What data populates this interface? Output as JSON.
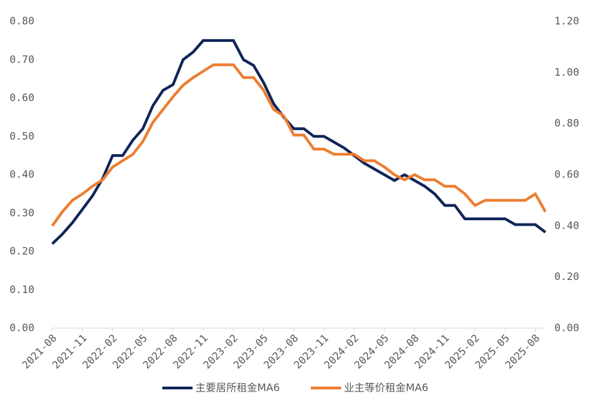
{
  "chart_data": {
    "type": "line",
    "categories": [
      "2021-08",
      null,
      null,
      "2021-11",
      null,
      null,
      "2022-02",
      null,
      null,
      "2022-05",
      null,
      null,
      "2022-08",
      null,
      null,
      "2022-11",
      null,
      null,
      "2023-02",
      null,
      null,
      "2023-05",
      null,
      null,
      "2023-08",
      null,
      null,
      "2023-11",
      null,
      null,
      "2024-02",
      null,
      null,
      "2024-05",
      null,
      null,
      "2024-08",
      null,
      null,
      "2024-11",
      null,
      null,
      "2025-02",
      null,
      null,
      "2025-05",
      null,
      null,
      "2025-08",
      null
    ],
    "series": [
      {
        "name": "主要居所租金MA6",
        "color": "#0f2557",
        "axis": "y",
        "values": [
          0.22,
          0.245,
          0.275,
          0.31,
          0.345,
          0.39,
          0.45,
          0.45,
          0.49,
          0.52,
          0.58,
          0.62,
          0.635,
          0.7,
          0.72,
          0.75,
          0.75,
          0.75,
          0.75,
          0.7,
          0.685,
          0.64,
          0.585,
          0.55,
          0.52,
          0.52,
          0.5,
          0.5,
          0.485,
          0.47,
          0.45,
          0.43,
          0.415,
          0.4,
          0.385,
          0.4,
          0.385,
          0.37,
          0.35,
          0.32,
          0.32,
          0.285,
          0.285,
          0.285,
          0.285,
          0.285,
          0.27,
          0.27,
          0.27,
          0.25
        ]
      },
      {
        "name": "业主等价租金MA6",
        "color": "#ed7d31",
        "axis": "y2",
        "values": [
          0.4,
          0.455,
          0.5,
          0.525,
          0.555,
          0.58,
          0.63,
          0.655,
          0.68,
          0.73,
          0.805,
          0.855,
          0.905,
          0.95,
          0.98,
          1.005,
          1.03,
          1.03,
          1.03,
          0.98,
          0.98,
          0.93,
          0.855,
          0.83,
          0.755,
          0.755,
          0.7,
          0.7,
          0.68,
          0.68,
          0.68,
          0.655,
          0.655,
          0.63,
          0.6,
          0.58,
          0.6,
          0.58,
          0.58,
          0.555,
          0.555,
          0.525,
          0.48,
          0.5,
          0.5,
          0.5,
          0.5,
          0.5,
          0.525,
          0.455
        ]
      }
    ],
    "ylim": [
      0,
      0.8
    ],
    "yticks": [
      {
        "value": 0,
        "label": "0.00"
      },
      {
        "value": 0.1,
        "label": "0.10"
      },
      {
        "value": 0.2,
        "label": "0.20"
      },
      {
        "value": 0.3,
        "label": "0.30"
      },
      {
        "value": 0.4,
        "label": "0.40"
      },
      {
        "value": 0.5,
        "label": "0.50"
      },
      {
        "value": 0.6,
        "label": "0.60"
      },
      {
        "value": 0.7,
        "label": "0.70"
      },
      {
        "value": 0.8,
        "label": "0.80"
      }
    ],
    "y2lim": [
      0,
      1.2
    ],
    "y2ticks": [
      {
        "value": 0,
        "label": "0.00"
      },
      {
        "value": 0.2,
        "label": "0.20"
      },
      {
        "value": 0.4,
        "label": "0.40"
      },
      {
        "value": 0.6,
        "label": "0.60"
      },
      {
        "value": 0.8,
        "label": "0.80"
      },
      {
        "value": 1.0,
        "label": "1.00"
      },
      {
        "value": 1.2,
        "label": "1.20"
      }
    ],
    "grid": false,
    "legend": "bottom"
  }
}
